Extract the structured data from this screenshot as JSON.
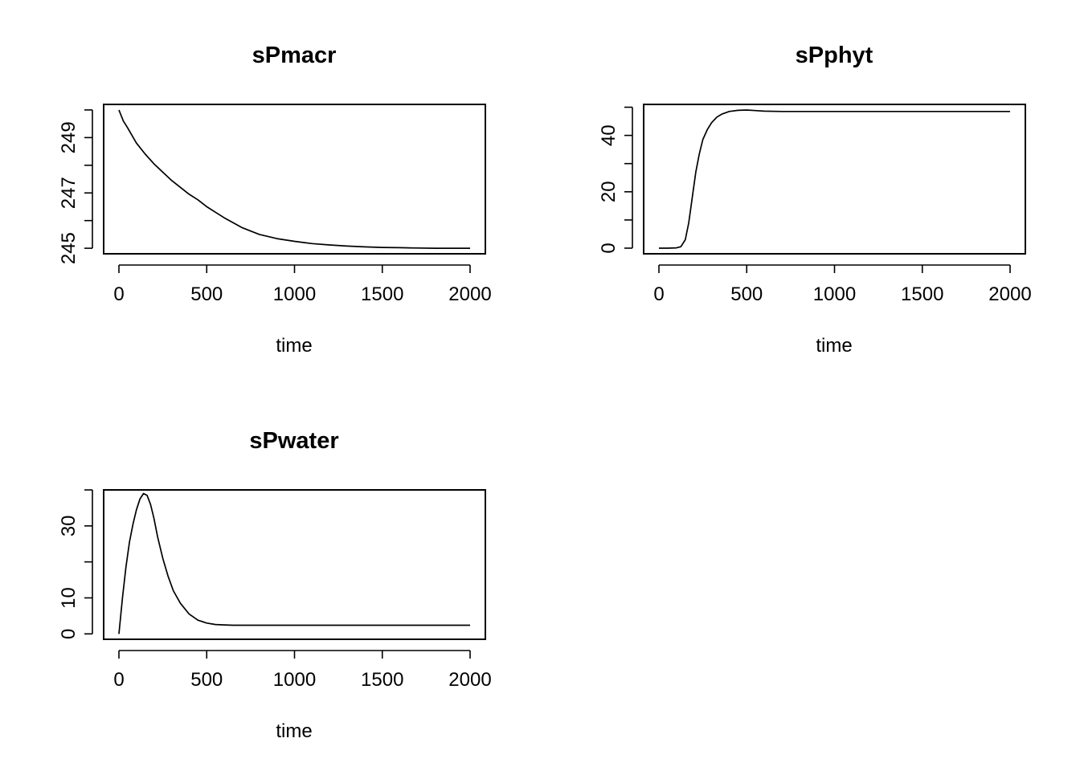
{
  "chart_data": [
    {
      "type": "line",
      "title": "sPmacr",
      "xlabel": "time",
      "ylabel": "",
      "xlim": [
        0,
        2000
      ],
      "ylim": [
        244.8,
        250.2
      ],
      "x_ticks": [
        "0",
        "500",
        "1000",
        "1500",
        "2000"
      ],
      "x_tick_values": [
        0,
        500,
        1000,
        1500,
        2000
      ],
      "y_ticks": [
        "245",
        "",
        "247",
        "",
        "249",
        ""
      ],
      "y_tick_values": [
        245,
        246,
        247,
        248,
        249,
        250
      ],
      "series": [
        {
          "x": [
            0,
            25,
            50,
            100,
            150,
            200,
            250,
            300,
            350,
            400,
            450,
            500,
            550,
            600,
            700,
            800,
            900,
            1000,
            1100,
            1200,
            1300,
            1400,
            1500,
            1600,
            1700,
            1800,
            1900,
            2000
          ],
          "y": [
            250.0,
            249.6,
            249.35,
            248.8,
            248.4,
            248.05,
            247.75,
            247.45,
            247.2,
            246.95,
            246.75,
            246.5,
            246.3,
            246.1,
            245.75,
            245.5,
            245.35,
            245.25,
            245.17,
            245.12,
            245.08,
            245.05,
            245.03,
            245.02,
            245.01,
            245.0,
            245.0,
            245.0
          ]
        }
      ],
      "grid": false
    },
    {
      "type": "line",
      "title": "sPphyt",
      "xlabel": "time",
      "ylabel": "",
      "xlim": [
        0,
        2000
      ],
      "ylim": [
        -2,
        51
      ],
      "x_ticks": [
        "0",
        "500",
        "1000",
        "1500",
        "2000"
      ],
      "x_tick_values": [
        0,
        500,
        1000,
        1500,
        2000
      ],
      "y_ticks": [
        "0",
        "",
        "20",
        "",
        "40",
        ""
      ],
      "y_tick_values": [
        0,
        10,
        20,
        30,
        40,
        50
      ],
      "series": [
        {
          "x": [
            0,
            50,
            100,
            125,
            150,
            170,
            190,
            210,
            230,
            250,
            275,
            300,
            330,
            360,
            400,
            450,
            500,
            550,
            600,
            700,
            800,
            1000,
            1500,
            2000
          ],
          "y": [
            0.0,
            0.0,
            0.1,
            0.5,
            3.0,
            9.0,
            18.0,
            27.0,
            33.5,
            38.5,
            42.0,
            44.5,
            46.5,
            47.6,
            48.5,
            48.9,
            49.0,
            48.8,
            48.6,
            48.5,
            48.5,
            48.5,
            48.5,
            48.5
          ]
        }
      ],
      "grid": false
    },
    {
      "type": "line",
      "title": "sPwater",
      "xlabel": "time",
      "ylabel": "",
      "xlim": [
        0,
        2000
      ],
      "ylim": [
        -1.5,
        40
      ],
      "x_ticks": [
        "0",
        "500",
        "1000",
        "1500",
        "2000"
      ],
      "x_tick_values": [
        0,
        500,
        1000,
        1500,
        2000
      ],
      "y_ticks": [
        "0",
        "10",
        "",
        "30",
        ""
      ],
      "y_tick_values": [
        0,
        10,
        20,
        30,
        40
      ],
      "series": [
        {
          "x": [
            0,
            20,
            40,
            60,
            80,
            100,
            120,
            140,
            160,
            180,
            200,
            220,
            250,
            280,
            310,
            350,
            400,
            450,
            500,
            550,
            600,
            650,
            700,
            800,
            1000,
            1500,
            2000
          ],
          "y": [
            0.0,
            10.0,
            18.5,
            25.5,
            30.5,
            34.5,
            37.5,
            39.0,
            38.5,
            36.0,
            32.0,
            27.0,
            21.0,
            16.0,
            12.0,
            8.5,
            5.5,
            3.8,
            3.0,
            2.6,
            2.5,
            2.4,
            2.4,
            2.4,
            2.4,
            2.4,
            2.4
          ]
        }
      ],
      "grid": false
    }
  ]
}
